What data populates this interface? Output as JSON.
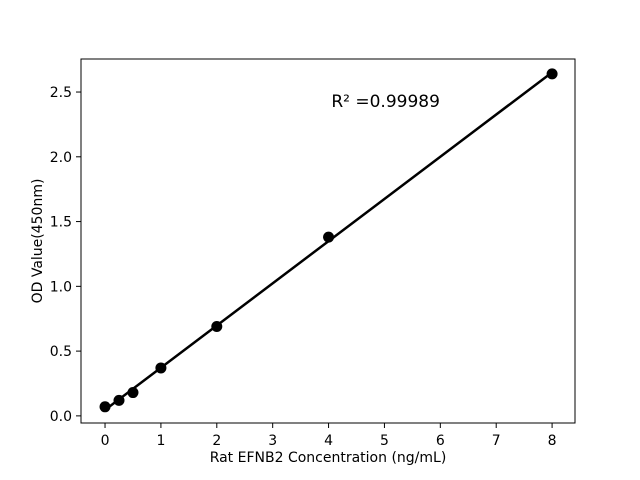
{
  "chart_data": {
    "type": "scatter",
    "title": "",
    "xlabel": "Rat EFNB2 Concentration (ng/mL)",
    "ylabel": "OD Value(450nm)",
    "annotation": {
      "text": "R² =0.99989",
      "x": 4.05,
      "y": 2.385
    },
    "x": [
      0,
      0.25,
      0.5,
      1,
      2,
      4,
      8
    ],
    "y": [
      0.07,
      0.12,
      0.18,
      0.37,
      0.69,
      1.38,
      2.64
    ],
    "fit_line": {
      "x": [
        0,
        8
      ],
      "y": [
        0.046,
        2.652
      ]
    },
    "xticks": [
      0,
      1,
      2,
      3,
      4,
      5,
      6,
      7,
      8
    ],
    "xtick_labels": [
      "0",
      "1",
      "2",
      "3",
      "4",
      "5",
      "6",
      "7",
      "8"
    ],
    "yticks": [
      0.0,
      0.5,
      1.0,
      1.5,
      2.0,
      2.5
    ],
    "ytick_labels": [
      "0.0",
      "0.5",
      "1.0",
      "1.5",
      "2.0",
      "2.5"
    ],
    "xlim": [
      -0.43,
      8.41
    ],
    "ylim": [
      -0.055,
      2.755
    ],
    "grid": false,
    "legend_position": "none",
    "marker_color": "#000000",
    "line_color": "#000000",
    "background_color": "#ffffff"
  }
}
